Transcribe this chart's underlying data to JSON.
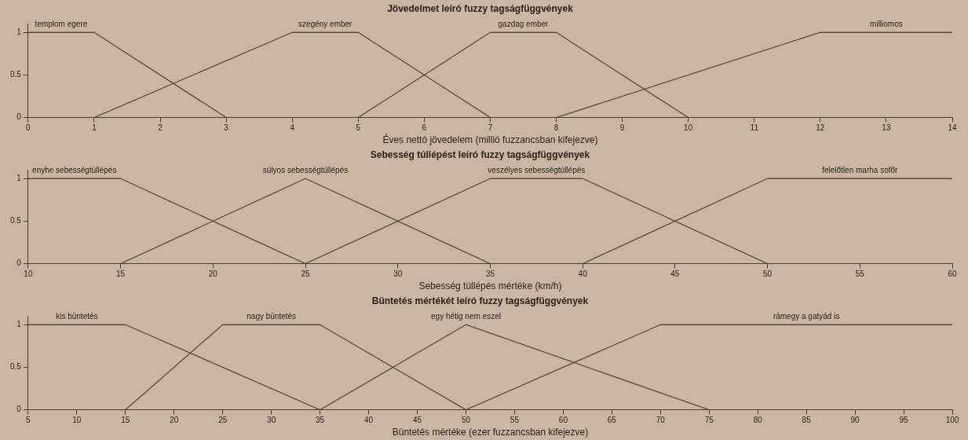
{
  "chart_data": [
    {
      "type": "line",
      "title": "Jövedelmet leíró fuzzy tagságfüggvények",
      "xlabel": "Éves nettó jövedelem (millió fuzzancsban kifejezve)",
      "xlim": [
        0,
        14
      ],
      "xticks": [
        0,
        1,
        2,
        3,
        4,
        5,
        6,
        7,
        8,
        9,
        10,
        11,
        12,
        13,
        14
      ],
      "ylim": [
        0,
        1.1
      ],
      "yticks": [
        0,
        0.5,
        1
      ],
      "legend": false,
      "marker": "none",
      "line_style": "solid",
      "series": [
        {
          "name": "templom egere",
          "color": "#5a4a3e",
          "x": [
            0,
            1,
            3
          ],
          "values": [
            1,
            1,
            0
          ]
        },
        {
          "name": "szegény ember",
          "color": "#5a4a3e",
          "x": [
            1,
            4,
            5,
            7
          ],
          "values": [
            0,
            1,
            1,
            0
          ]
        },
        {
          "name": "gazdag ember",
          "color": "#5a4a3e",
          "x": [
            5,
            7,
            8,
            10
          ],
          "values": [
            0,
            1,
            1,
            0
          ]
        },
        {
          "name": "milliomos",
          "color": "#5a4a3e",
          "x": [
            8,
            12,
            14
          ],
          "values": [
            0,
            1,
            1
          ]
        }
      ]
    },
    {
      "type": "line",
      "title": "Sebesség túllépést leíró fuzzy tagságfüggvények",
      "xlabel": "Sebesség túllépés mértéke (km/h)",
      "xlim": [
        10,
        60
      ],
      "xticks": [
        10,
        15,
        20,
        25,
        30,
        35,
        40,
        45,
        50,
        55,
        60
      ],
      "ylim": [
        0,
        1.1
      ],
      "yticks": [
        0,
        0.5,
        1
      ],
      "legend": false,
      "marker": "none",
      "line_style": "solid",
      "series": [
        {
          "name": "enyhe sebességtúllépés",
          "color": "#5a4a3e",
          "x": [
            10,
            15,
            25
          ],
          "values": [
            1,
            1,
            0
          ]
        },
        {
          "name": "súlyos sebességtúllépés",
          "color": "#5a4a3e",
          "x": [
            15,
            25,
            35
          ],
          "values": [
            0,
            1,
            0
          ]
        },
        {
          "name": "veszélyes sebességtúllépés",
          "color": "#5a4a3e",
          "x": [
            25,
            35,
            40,
            50
          ],
          "values": [
            0,
            1,
            1,
            0
          ]
        },
        {
          "name": "felelőtlen marha sofőr",
          "color": "#5a4a3e",
          "x": [
            40,
            50,
            60
          ],
          "values": [
            0,
            1,
            1
          ]
        }
      ]
    },
    {
      "type": "line",
      "title": "Büntetés mértékét leíró fuzzy tagságfüggvények",
      "xlabel": "Büntetés mértéke (ezer fuzzancsban kifejezve)",
      "xlim": [
        5,
        100
      ],
      "xticks": [
        5,
        10,
        15,
        20,
        25,
        30,
        35,
        40,
        45,
        50,
        55,
        60,
        65,
        70,
        75,
        80,
        85,
        90,
        95,
        100
      ],
      "ylim": [
        0,
        1.1
      ],
      "yticks": [
        0,
        0.5,
        1
      ],
      "legend": false,
      "marker": "none",
      "line_style": "solid",
      "series": [
        {
          "name": "kis büntetés",
          "color": "#5a4a3e",
          "x": [
            5,
            15,
            35
          ],
          "values": [
            1,
            1,
            0
          ]
        },
        {
          "name": "nagy büntetés",
          "color": "#5a4a3e",
          "x": [
            15,
            25,
            35,
            50
          ],
          "values": [
            0,
            1,
            1,
            0
          ]
        },
        {
          "name": "egy hétig nem eszel",
          "color": "#5a4a3e",
          "x": [
            35,
            50,
            75
          ],
          "values": [
            0,
            1,
            0
          ]
        },
        {
          "name": "rámegy a gatyád is",
          "color": "#5a4a3e",
          "x": [
            50,
            70,
            100
          ],
          "values": [
            0,
            1,
            1
          ]
        }
      ]
    }
  ]
}
